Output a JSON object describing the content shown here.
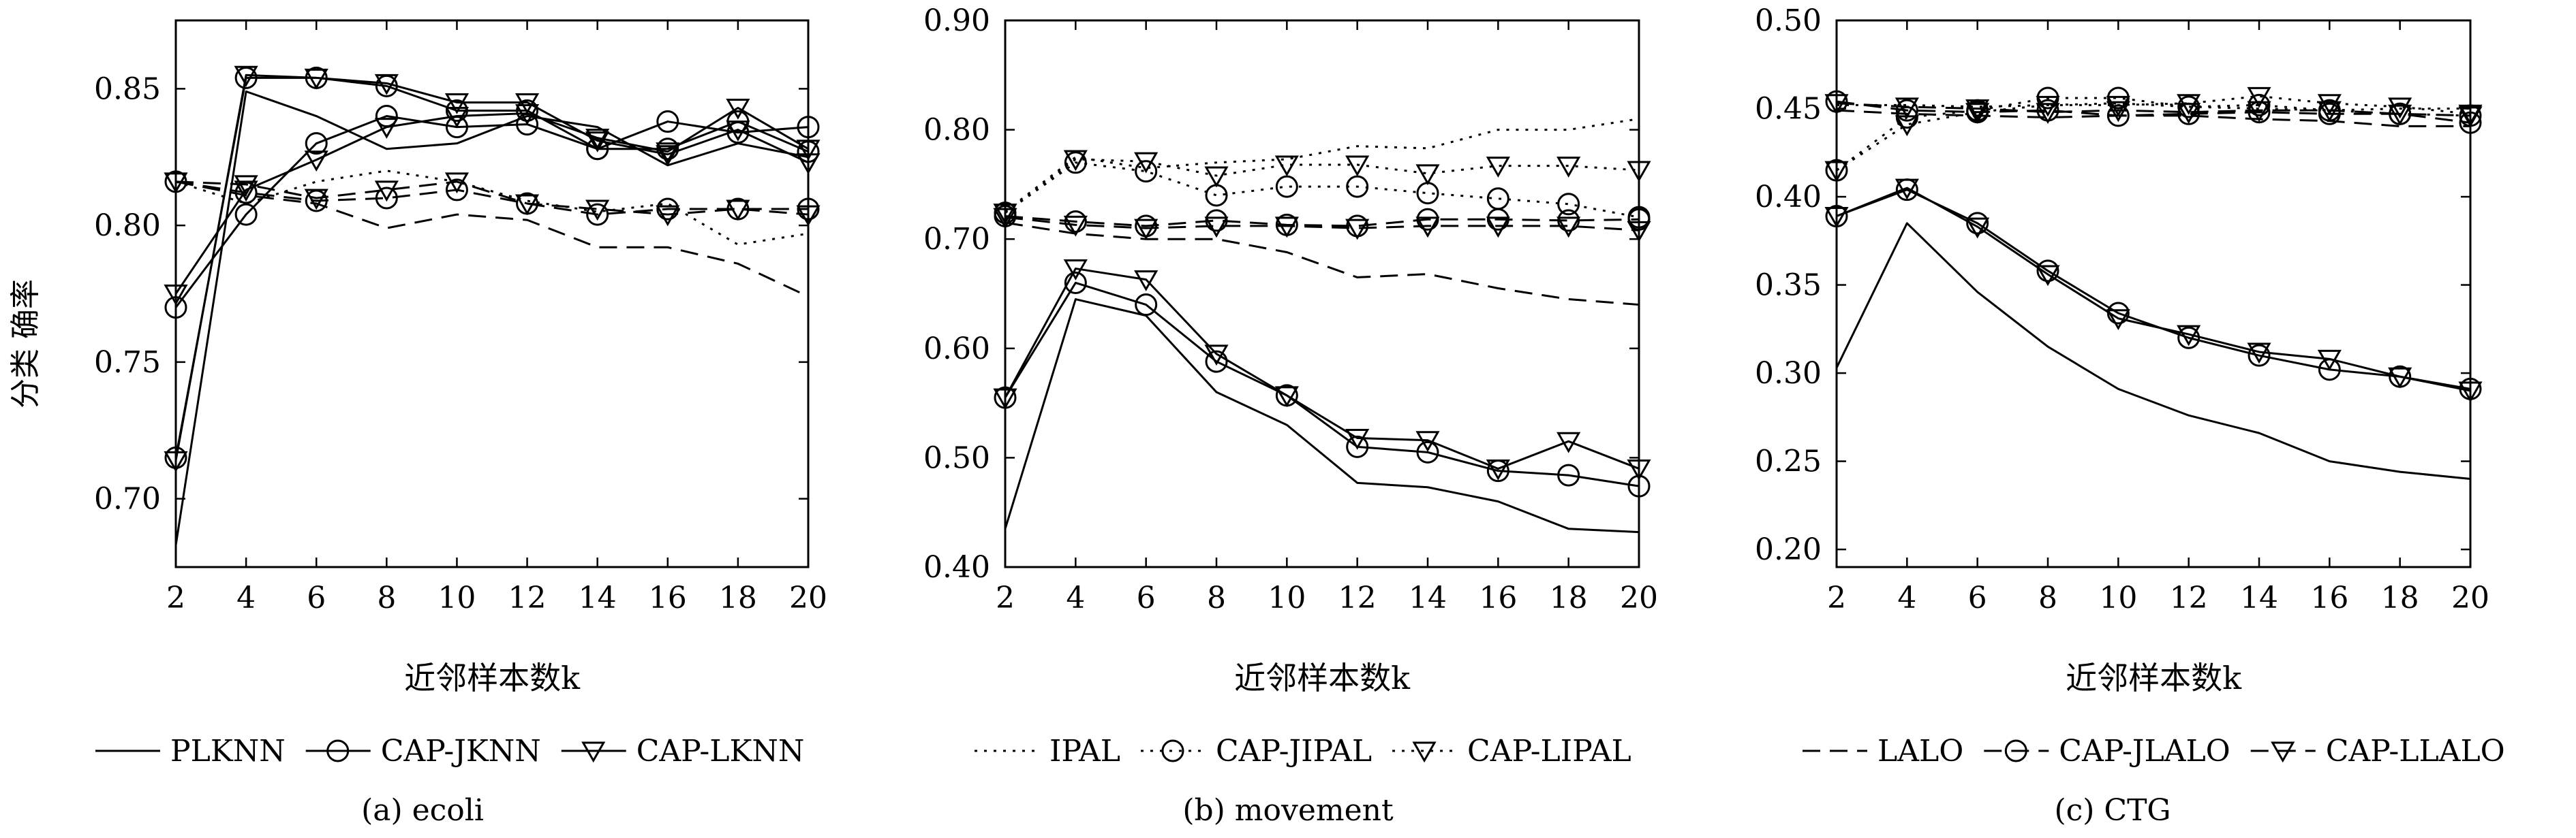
{
  "y_axis_title": "分类 确率",
  "chart_data": [
    {
      "type": "line",
      "caption": "(a) ecoli",
      "xlabel": "近邻样本数k",
      "ylabel": "分类 确率",
      "xlim": [
        2,
        20
      ],
      "ylim": [
        0.675,
        0.875
      ],
      "x": [
        2,
        4,
        6,
        8,
        10,
        12,
        14,
        16,
        18,
        20
      ],
      "xticks": [
        "2",
        "4",
        "6",
        "8",
        "10",
        "12",
        "14",
        "16",
        "18",
        "20"
      ],
      "yticks": [
        "0.70",
        "0.75",
        "0.80",
        "0.85"
      ],
      "ytick_values": [
        0.7,
        0.75,
        0.8,
        0.85
      ],
      "grid": false,
      "legend_position": "bottom",
      "series": [
        {
          "name": "PLKNN",
          "style": "solid",
          "marker": "none",
          "values": [
            0.683,
            0.849,
            0.84,
            0.828,
            0.83,
            0.84,
            0.836,
            0.822,
            0.83,
            0.825
          ]
        },
        {
          "name": "CAP-JKNN",
          "style": "solid",
          "marker": "circle",
          "values": [
            0.77,
            0.804,
            0.83,
            0.84,
            0.836,
            0.837,
            0.828,
            0.838,
            0.834,
            0.836
          ]
        },
        {
          "name": "CAP-LKNN",
          "style": "solid",
          "marker": "triangle",
          "values": [
            0.775,
            0.813,
            0.824,
            0.836,
            0.84,
            0.841,
            0.832,
            0.827,
            0.843,
            0.828
          ]
        },
        {
          "name": "",
          "style": "solid",
          "marker": "circle",
          "values": [
            0.715,
            0.854,
            0.854,
            0.851,
            0.842,
            0.842,
            0.828,
            0.828,
            0.838,
            0.827
          ]
        },
        {
          "name": "",
          "style": "solid",
          "marker": "triangle",
          "values": [
            0.714,
            0.855,
            0.854,
            0.852,
            0.845,
            0.845,
            0.831,
            0.826,
            0.835,
            0.823
          ]
        },
        {
          "name": "",
          "style": "dotted",
          "marker": "none",
          "values": [
            0.816,
            0.808,
            0.816,
            0.82,
            0.816,
            0.809,
            0.805,
            0.808,
            0.793,
            0.797
          ]
        },
        {
          "name": "",
          "style": "dashed",
          "marker": "none",
          "values": [
            0.816,
            0.811,
            0.808,
            0.799,
            0.804,
            0.802,
            0.792,
            0.792,
            0.786,
            0.774
          ]
        },
        {
          "name": "",
          "style": "dashed",
          "marker": "circle",
          "values": [
            0.816,
            0.812,
            0.809,
            0.81,
            0.813,
            0.808,
            0.804,
            0.806,
            0.806,
            0.806
          ]
        },
        {
          "name": "",
          "style": "dashed",
          "marker": "triangle",
          "values": [
            0.816,
            0.815,
            0.81,
            0.813,
            0.816,
            0.808,
            0.806,
            0.804,
            0.806,
            0.804
          ]
        }
      ]
    },
    {
      "type": "line",
      "caption": "(b) movement",
      "xlabel": "近邻样本数k",
      "xlim": [
        2,
        20
      ],
      "ylim": [
        0.4,
        0.9
      ],
      "x": [
        2,
        4,
        6,
        8,
        10,
        12,
        14,
        16,
        18,
        20
      ],
      "xticks": [
        "2",
        "4",
        "6",
        "8",
        "10",
        "12",
        "14",
        "16",
        "18",
        "20"
      ],
      "yticks": [
        "0.40",
        "0.50",
        "0.60",
        "0.70",
        "0.80",
        "0.90"
      ],
      "ytick_values": [
        0.4,
        0.5,
        0.6,
        0.7,
        0.8,
        0.9
      ],
      "grid": false,
      "legend_position": "bottom",
      "series": [
        {
          "name": "",
          "style": "solid",
          "marker": "none",
          "values": [
            0.435,
            0.645,
            0.63,
            0.56,
            0.53,
            0.477,
            0.473,
            0.46,
            0.435,
            0.432
          ]
        },
        {
          "name": "",
          "style": "solid",
          "marker": "circle",
          "values": [
            0.555,
            0.66,
            0.64,
            0.588,
            0.557,
            0.51,
            0.505,
            0.488,
            0.484,
            0.474
          ]
        },
        {
          "name": "",
          "style": "solid",
          "marker": "triangle",
          "values": [
            0.555,
            0.673,
            0.663,
            0.595,
            0.557,
            0.518,
            0.516,
            0.49,
            0.515,
            0.49
          ]
        },
        {
          "name": "IPAL",
          "style": "dotted",
          "marker": "none",
          "values": [
            0.725,
            0.775,
            0.765,
            0.77,
            0.773,
            0.785,
            0.783,
            0.8,
            0.8,
            0.81
          ]
        },
        {
          "name": "CAP-JIPAL",
          "style": "dotted",
          "marker": "circle",
          "values": [
            0.724,
            0.77,
            0.762,
            0.74,
            0.748,
            0.748,
            0.742,
            0.737,
            0.732,
            0.72
          ]
        },
        {
          "name": "CAP-LIPAL",
          "style": "dotted",
          "marker": "triangle",
          "values": [
            0.724,
            0.773,
            0.771,
            0.758,
            0.768,
            0.768,
            0.76,
            0.767,
            0.767,
            0.763
          ]
        },
        {
          "name": "",
          "style": "dashed",
          "marker": "none",
          "values": [
            0.715,
            0.705,
            0.7,
            0.7,
            0.688,
            0.665,
            0.668,
            0.655,
            0.645,
            0.64
          ]
        },
        {
          "name": "",
          "style": "dashed",
          "marker": "circle",
          "values": [
            0.721,
            0.716,
            0.712,
            0.717,
            0.713,
            0.712,
            0.718,
            0.718,
            0.717,
            0.718
          ]
        },
        {
          "name": "",
          "style": "dashed",
          "marker": "triangle",
          "values": [
            0.72,
            0.713,
            0.71,
            0.712,
            0.712,
            0.71,
            0.712,
            0.712,
            0.712,
            0.708
          ]
        }
      ]
    },
    {
      "type": "line",
      "caption": "(c) CTG",
      "xlabel": "近邻样本数k",
      "xlim": [
        2,
        20
      ],
      "ylim": [
        0.19,
        0.5
      ],
      "x": [
        2,
        4,
        6,
        8,
        10,
        12,
        14,
        16,
        18,
        20
      ],
      "xticks": [
        "2",
        "4",
        "6",
        "8",
        "10",
        "12",
        "14",
        "16",
        "18",
        "20"
      ],
      "yticks": [
        "0.20",
        "0.25",
        "0.30",
        "0.35",
        "0.40",
        "0.45",
        "0.50"
      ],
      "ytick_values": [
        0.2,
        0.25,
        0.3,
        0.35,
        0.4,
        0.45,
        0.5
      ],
      "grid": false,
      "legend_position": "bottom",
      "series": [
        {
          "name": "",
          "style": "solid",
          "marker": "none",
          "values": [
            0.303,
            0.385,
            0.346,
            0.315,
            0.291,
            0.276,
            0.266,
            0.25,
            0.244,
            0.24
          ]
        },
        {
          "name": "",
          "style": "solid",
          "marker": "circle",
          "values": [
            0.389,
            0.404,
            0.385,
            0.358,
            0.334,
            0.32,
            0.31,
            0.302,
            0.298,
            0.291
          ]
        },
        {
          "name": "",
          "style": "solid",
          "marker": "triangle",
          "values": [
            0.389,
            0.405,
            0.383,
            0.356,
            0.331,
            0.322,
            0.312,
            0.308,
            0.298,
            0.29
          ]
        },
        {
          "name": "",
          "style": "dotted",
          "marker": "none",
          "values": [
            0.452,
            0.452,
            0.451,
            0.452,
            0.453,
            0.451,
            0.45,
            0.449,
            0.45,
            0.45
          ]
        },
        {
          "name": "",
          "style": "dotted",
          "marker": "circle",
          "values": [
            0.415,
            0.445,
            0.449,
            0.456,
            0.456,
            0.451,
            0.452,
            0.449,
            0.447,
            0.446
          ]
        },
        {
          "name": "",
          "style": "dotted",
          "marker": "triangle",
          "values": [
            0.415,
            0.441,
            0.448,
            0.452,
            0.452,
            0.453,
            0.457,
            0.453,
            0.451,
            0.447
          ]
        },
        {
          "name": "LALO",
          "style": "dashed",
          "marker": "none",
          "values": [
            0.449,
            0.447,
            0.446,
            0.445,
            0.446,
            0.446,
            0.444,
            0.443,
            0.44,
            0.44
          ]
        },
        {
          "name": "CAP-JLALO",
          "style": "dashed",
          "marker": "circle",
          "values": [
            0.454,
            0.449,
            0.448,
            0.449,
            0.446,
            0.447,
            0.448,
            0.447,
            0.447,
            0.442
          ]
        },
        {
          "name": "CAP-LLALO",
          "style": "dashed",
          "marker": "triangle",
          "values": [
            0.453,
            0.451,
            0.45,
            0.448,
            0.449,
            0.448,
            0.449,
            0.449,
            0.447,
            0.446
          ]
        }
      ]
    }
  ]
}
